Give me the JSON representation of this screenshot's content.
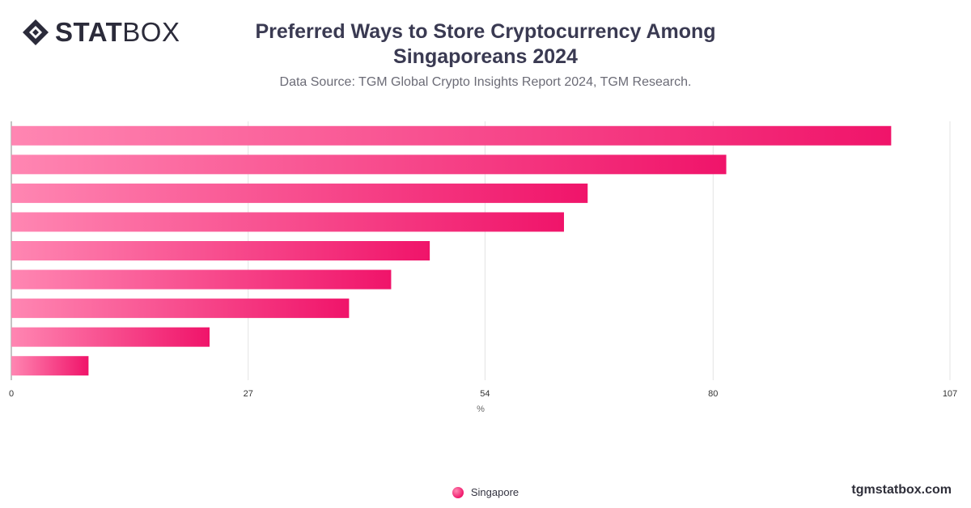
{
  "brand": {
    "logo_bold": "STAT",
    "logo_light": "BOX",
    "site": "tgmstatbox.com"
  },
  "colors": {
    "bar_start": "#ff86b2",
    "bar_end": "#f0146a",
    "grid": "#e3e3e3",
    "axis_line": "#888888",
    "tick_text": "#333333"
  },
  "chart_data": {
    "type": "bar",
    "orientation": "horizontal",
    "title": "Preferred Ways to Store Cryptocurrency Among Singaporeans 2024",
    "subtitle": "Data Source: TGM Global Crypto Insights Report 2024, TGM Research.",
    "xlabel": "%",
    "ylabel": "",
    "xlim": [
      0,
      107
    ],
    "xticks": [
      0,
      27,
      54,
      80,
      107
    ],
    "grid": true,
    "legend_position": "bottom-center",
    "categories": [
      "",
      "",
      "",
      "",
      "",
      "",
      "",
      "",
      ""
    ],
    "series": [
      {
        "name": "Singapore",
        "values": [
          100.3,
          81.5,
          65.7,
          63.0,
          47.7,
          43.3,
          38.5,
          22.6,
          8.8
        ]
      }
    ]
  }
}
